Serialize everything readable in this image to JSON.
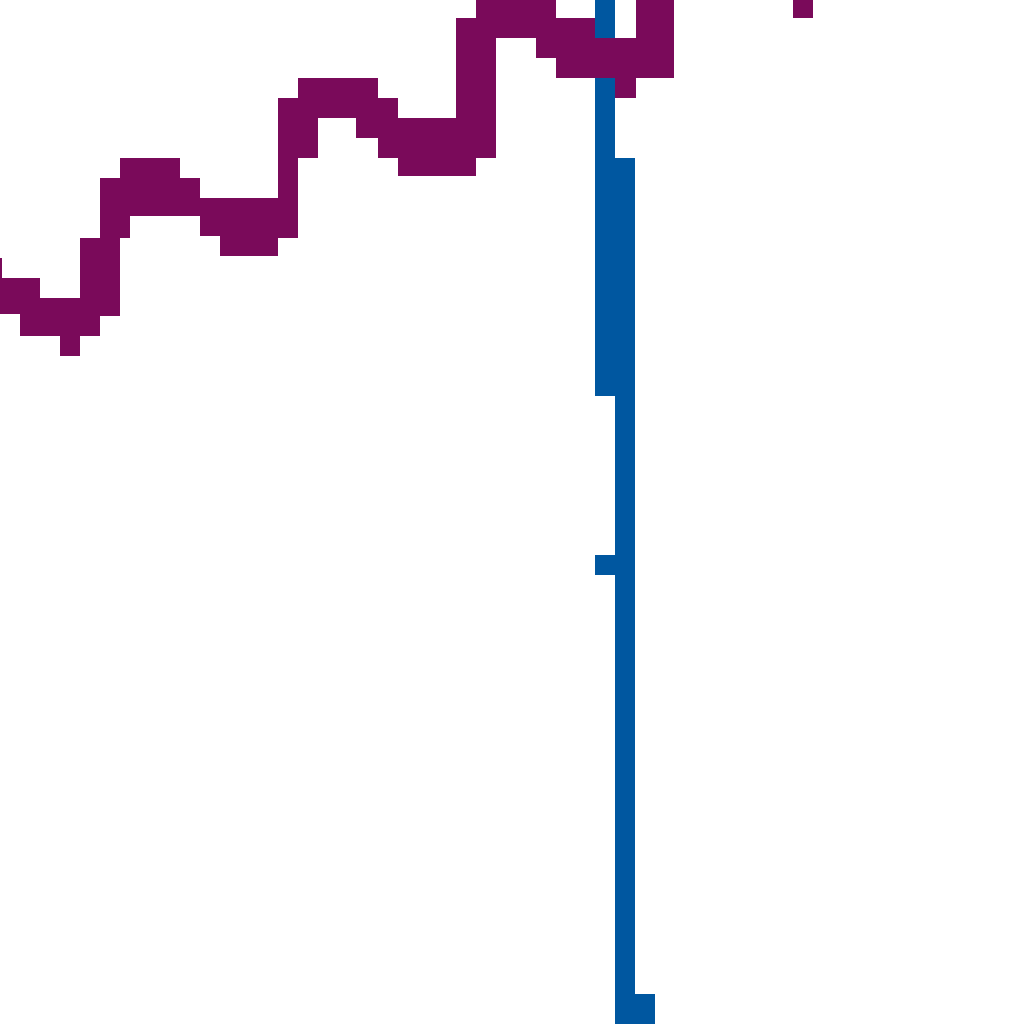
{
  "map": {
    "background_color": "#ffffff",
    "features": [
      {
        "id": "purple-route",
        "kind": "route-line",
        "color": "#7a0a5a"
      },
      {
        "id": "blue-route",
        "kind": "route-line",
        "color": "#0057a0"
      }
    ]
  }
}
